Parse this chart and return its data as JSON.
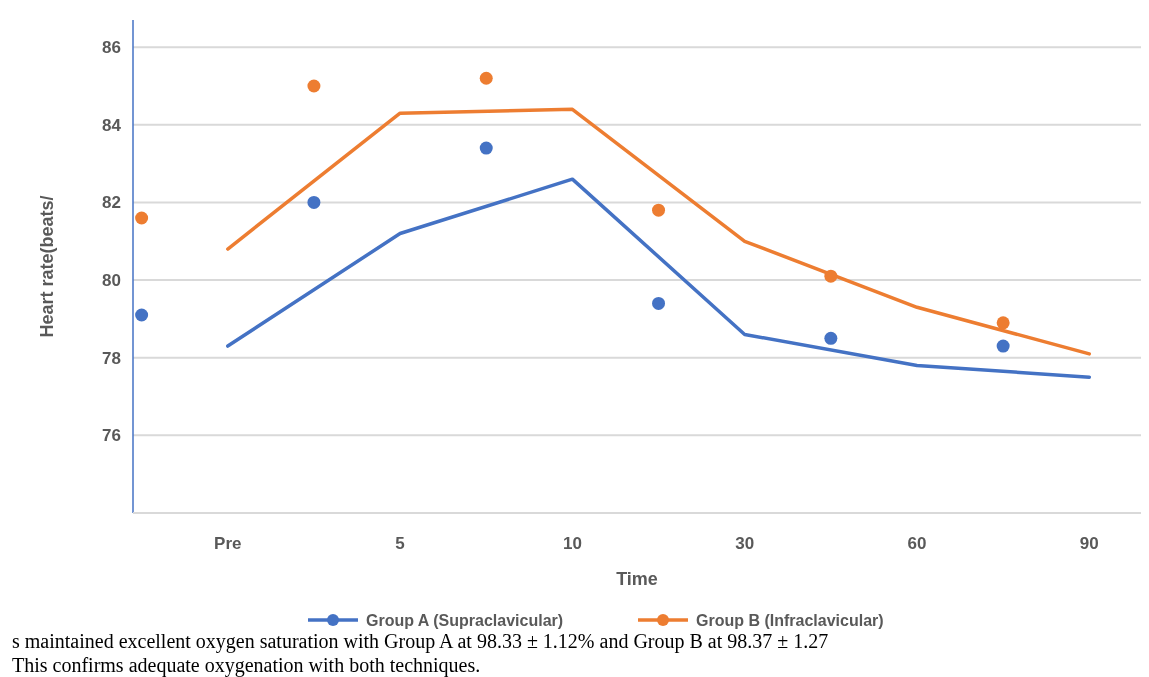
{
  "chart_data": {
    "type": "line",
    "ylabel": "Heart rate(beats/",
    "xlabel": "Time",
    "categories": [
      null,
      "Pre",
      null,
      "5",
      null,
      "10",
      null,
      "30",
      null,
      "60",
      null,
      "90"
    ],
    "ylim": [
      74,
      86.7
    ],
    "yticks": [
      76,
      78,
      80,
      82,
      84,
      86
    ],
    "grid": "y",
    "legend": "bottom",
    "marker": "none",
    "line_style": "solid",
    "series": [
      {
        "name": "Group A (Supraclavicular)",
        "color": "#4472c4",
        "values": [
          null,
          78.3,
          null,
          81.2,
          null,
          82.6,
          null,
          78.6,
          null,
          77.8,
          null,
          77.5
        ]
      },
      {
        "name": "Group B (Infraclavicular)",
        "color": "#ed7d31",
        "values": [
          null,
          80.8,
          null,
          84.3,
          null,
          84.4,
          null,
          81.0,
          null,
          79.3,
          null,
          78.1
        ]
      },
      {
        "type": "scatter",
        "marker": "circle",
        "color": "#4472c4",
        "values": [
          79.1,
          null,
          82.0,
          null,
          83.4,
          null,
          79.4,
          null,
          78.5,
          null,
          78.3,
          null
        ]
      },
      {
        "type": "scatter",
        "marker": "circle",
        "color": "#ed7d31",
        "values": [
          81.6,
          null,
          85.0,
          null,
          85.2,
          null,
          81.8,
          null,
          80.1,
          null,
          78.9,
          null
        ]
      }
    ],
    "annotations": [
      "s maintained excellent oxygen saturation with Group A at 98.33 ± 1.12% and Group B at 98.37 ± 1.27",
      "This confirms adequate oxygenation with both techniques."
    ]
  }
}
